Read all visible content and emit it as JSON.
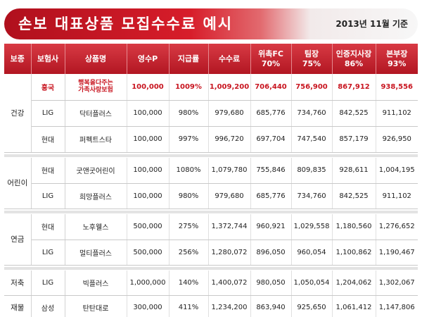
{
  "header": {
    "title": "손보 대표상품 모집수수료 예시",
    "date_label": "2013년 11월 기준"
  },
  "table": {
    "headers": {
      "bojong": "보종",
      "insurer": "보험사",
      "product": "상품명",
      "premium": "영수P",
      "rate": "지급률",
      "fee": "수수료",
      "fc_name": "위촉FC",
      "fc_pct": "70%",
      "team_name": "팀장",
      "team_pct": "75%",
      "cert_name": "인증지사장",
      "cert_pct": "86%",
      "hq_name": "본부장",
      "hq_pct": "93%"
    },
    "groups": [
      {
        "bojong": "건강",
        "rows": [
          {
            "insurer": "흥국",
            "product_line1": "행복을다주는",
            "product_line2": "가족사랑보험",
            "premium": "100,000",
            "rate": "1009%",
            "fee": "1,009,200",
            "fc": "706,440",
            "team": "756,900",
            "cert": "867,912",
            "hq": "938,556"
          },
          {
            "insurer": "LIG",
            "product": "닥터플러스",
            "premium": "100,000",
            "rate": "980%",
            "fee": "979,680",
            "fc": "685,776",
            "team": "734,760",
            "cert": "842,525",
            "hq": "911,102"
          },
          {
            "insurer": "현대",
            "product": "퍼펙트스타",
            "premium": "100,000",
            "rate": "997%",
            "fee": "996,720",
            "fc": "697,704",
            "team": "747,540",
            "cert": "857,179",
            "hq": "926,950"
          }
        ]
      },
      {
        "bojong": "어린이",
        "rows": [
          {
            "insurer": "현대",
            "product": "굿앤굿어린이",
            "premium": "100,000",
            "rate": "1080%",
            "fee": "1,079,780",
            "fc": "755,846",
            "team": "809,835",
            "cert": "928,611",
            "hq": "1,004,195"
          },
          {
            "insurer": "LIG",
            "product": "희망플러스",
            "premium": "100,000",
            "rate": "980%",
            "fee": "979,680",
            "fc": "685,776",
            "team": "734,760",
            "cert": "842,525",
            "hq": "911,102"
          }
        ]
      },
      {
        "bojong": "연금",
        "rows": [
          {
            "insurer": "현대",
            "product": "노후웰스",
            "premium": "500,000",
            "rate": "275%",
            "fee": "1,372,744",
            "fc": "960,921",
            "team": "1,029,558",
            "cert": "1,180,560",
            "hq": "1,276,652"
          },
          {
            "insurer": "LIG",
            "product": "멀티플러스",
            "premium": "500,000",
            "rate": "256%",
            "fee": "1,280,072",
            "fc": "896,050",
            "team": "960,054",
            "cert": "1,100,862",
            "hq": "1,190,467"
          }
        ]
      },
      {
        "bojong": "저축",
        "rows": [
          {
            "insurer": "LIG",
            "product": "빅플러스",
            "premium": "1,000,000",
            "rate": "140%",
            "fee": "1,400,072",
            "fc": "980,050",
            "team": "1,050,054",
            "cert": "1,204,062",
            "hq": "1,302,067"
          }
        ]
      },
      {
        "bojong": "재물",
        "rows": [
          {
            "insurer": "삼성",
            "product": "탄탄대로",
            "premium": "300,000",
            "rate": "411%",
            "fee": "1,234,200",
            "fc": "863,940",
            "team": "925,650",
            "cert": "1,061,412",
            "hq": "1,147,806"
          }
        ]
      }
    ]
  }
}
